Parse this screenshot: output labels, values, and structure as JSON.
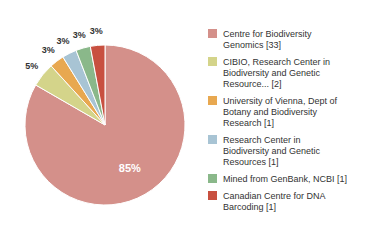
{
  "chart_data": {
    "type": "pie",
    "categories": [
      "Centre for Biodiversity\nGenomics [33]",
      "CIBIO, Research Center in\nBiodiversity and Genetic\nResource... [2]",
      "University of Vienna, Dept of\nBotany and Biodiversity\nResearch [1]",
      "Research Center in\nBiodiversity and Genetic\nResources [1]",
      "Mined from GenBank, NCBI [1]",
      "Canadian Centre for DNA\nBarcoding [1]"
    ],
    "values": [
      85,
      5,
      3,
      3,
      3,
      3
    ],
    "value_labels": [
      "85%",
      "5%",
      "3%",
      "3%",
      "3%",
      "3%"
    ],
    "colors": [
      "#d4908a",
      "#d4d48a",
      "#e8a850",
      "#a8c4d4",
      "#8ab88a",
      "#c85040"
    ],
    "data_labels": true,
    "legend": "right"
  }
}
